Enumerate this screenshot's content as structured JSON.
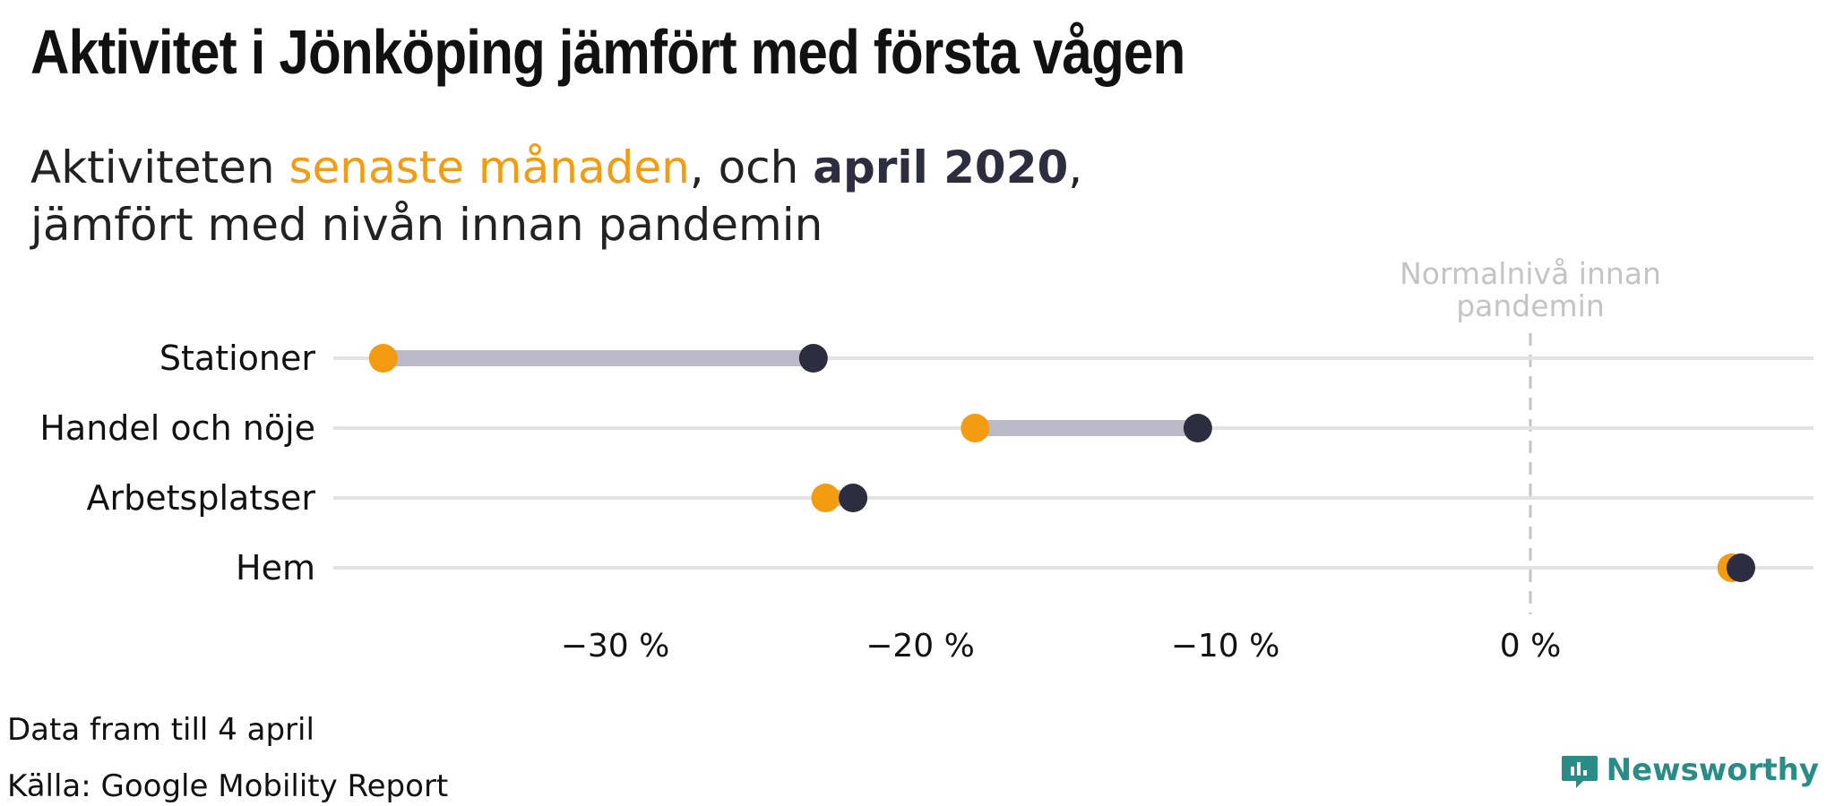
{
  "title": "Aktivitet i Jönköping jämfört med första vågen",
  "subtitle": {
    "part1": "Aktiviteten ",
    "recent_label": "senaste månaden",
    "part2": ", och ",
    "april_label": "april 2020",
    "part3": ",",
    "line2": "jämfört med nivån innan pandemin"
  },
  "footer": {
    "data_note": "Data fram till 4 april",
    "source": "Källa: Google Mobility Report"
  },
  "brand": {
    "name": "Newsworthy"
  },
  "colors": {
    "recent": "#f39c12",
    "april2020": "#2e2d3f",
    "connector": "#bcbac8",
    "gridline": "#e3e3e3",
    "reference": "#c4c4c4",
    "brand": "#2a8c87"
  },
  "chart_data": {
    "type": "dumbbell",
    "categories": [
      "Stationer",
      "Handel och nöje",
      "Arbetsplatser",
      "Hem"
    ],
    "series": [
      {
        "name": "senaste månaden",
        "values": [
          -37.6,
          -18.2,
          -23.1,
          6.6
        ]
      },
      {
        "name": "april 2020",
        "values": [
          -23.5,
          -10.9,
          -22.2,
          6.9
        ]
      }
    ],
    "xlim": [
      -39,
      9
    ],
    "xticks": [
      -30,
      -20,
      -10,
      0
    ],
    "xtick_labels": [
      "−30 %",
      "−20 %",
      "−10 %",
      "0 %"
    ],
    "reference_line": {
      "value": 0,
      "label_line1": "Normalnivå innan",
      "label_line2": "pandemin"
    },
    "grid": true
  }
}
